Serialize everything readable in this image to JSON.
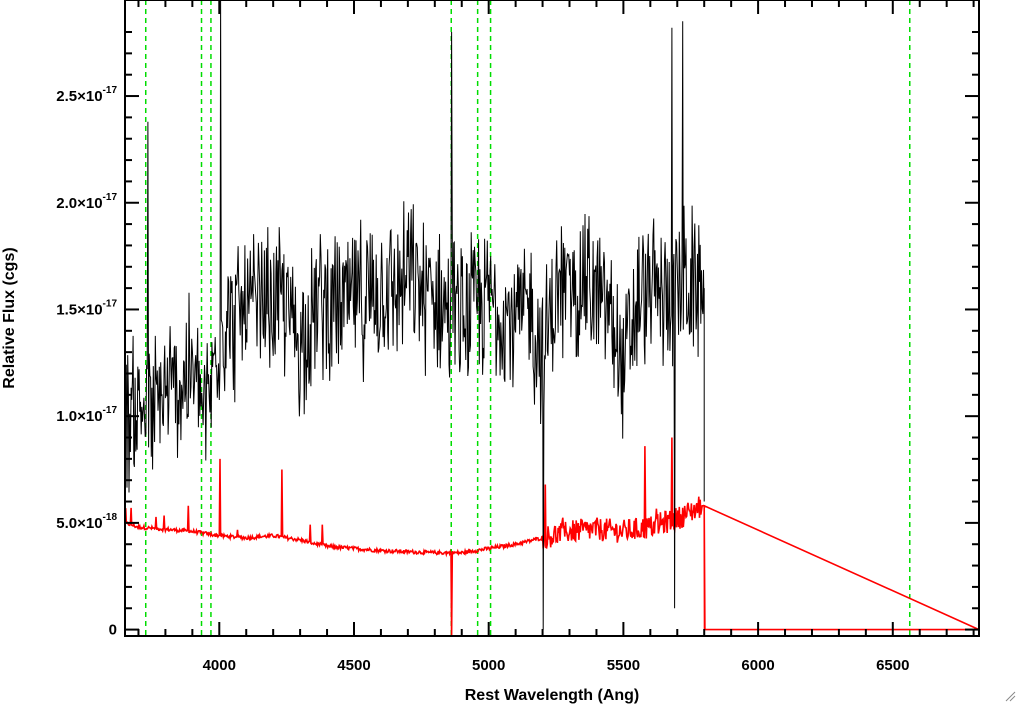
{
  "chart_data": {
    "type": "line",
    "title": "",
    "xlabel": "Rest Wavelength (Ang)",
    "ylabel": "Relative Flux (cgs)",
    "xlim": [
      3650,
      6820
    ],
    "ylim": [
      -3e-19,
      2.95e-17
    ],
    "x_ticks": [
      {
        "value": 4000,
        "label": "4000"
      },
      {
        "value": 4500,
        "label": "4500"
      },
      {
        "value": 5000,
        "label": "5000"
      },
      {
        "value": 5500,
        "label": "5500"
      },
      {
        "value": 6000,
        "label": "6000"
      },
      {
        "value": 6500,
        "label": "6500"
      }
    ],
    "y_ticks": [
      {
        "value": 0,
        "mantissa": "0",
        "exponent": ""
      },
      {
        "value": 5e-18,
        "mantissa": "5.0×10",
        "exponent": "-18"
      },
      {
        "value": 1e-17,
        "mantissa": "1.0×10",
        "exponent": "-17"
      },
      {
        "value": 1.5e-17,
        "mantissa": "1.5×10",
        "exponent": "-17"
      },
      {
        "value": 2e-17,
        "mantissa": "2.0×10",
        "exponent": "-17"
      },
      {
        "value": 2.5e-17,
        "mantissa": "2.5×10",
        "exponent": "-17"
      }
    ],
    "grid": false,
    "reference_lines": [
      3727,
      3934,
      3969,
      4861,
      4959,
      5007,
      6563
    ],
    "series": [
      {
        "color": "#000000",
        "x": [
          3650,
          3700,
          3750,
          3800,
          3850,
          3900,
          3950,
          4000,
          4050,
          4100,
          4150,
          4200,
          4250,
          4300,
          4350,
          4400,
          4450,
          4500,
          4550,
          4600,
          4650,
          4700,
          4750,
          4800,
          4850,
          4900,
          4950,
          5000,
          5050,
          5100,
          5150,
          5200,
          5250,
          5300,
          5350,
          5400,
          5450,
          5500,
          5550,
          5600,
          5650,
          5700,
          5750,
          5800
        ],
        "values": [
          1e-17,
          1.05e-17,
          1e-17,
          1.1e-17,
          1.15e-17,
          1.2e-17,
          1e-17,
          1.4e-17,
          1.45e-17,
          1.5e-17,
          1.5e-17,
          1.55e-17,
          1.5e-17,
          1.35e-17,
          1.5e-17,
          1.55e-17,
          1.5e-17,
          1.55e-17,
          1.55e-17,
          1.6e-17,
          1.6e-17,
          1.65e-17,
          1.6e-17,
          1.55e-17,
          1.5e-17,
          1.45e-17,
          1.5e-17,
          1.55e-17,
          1.5e-17,
          1.45e-17,
          1.5e-17,
          1.3e-17,
          1.55e-17,
          1.6e-17,
          1.65e-17,
          1.55e-17,
          1.5e-17,
          1.2e-17,
          1.5e-17,
          1.6e-17,
          1.55e-17,
          1.6e-17,
          1.6e-17,
          1.6e-17
        ],
        "noise_amplitude": 3e-18,
        "spikes": [
          {
            "x": 3735,
            "value": 2.38e-17
          },
          {
            "x": 4005,
            "value": 2.95e-17
          },
          {
            "x": 4862,
            "value": 2.8e-17
          },
          {
            "x": 5202,
            "value": 0.0
          },
          {
            "x": 5690,
            "value": 1e-18
          },
          {
            "x": 5720,
            "value": 2.85e-17
          },
          {
            "x": 5680,
            "value": 2.82e-17
          }
        ],
        "end_x": 5800
      },
      {
        "color": "#ff0000",
        "x": [
          3650,
          3700,
          3800,
          3900,
          4000,
          4100,
          4200,
          4300,
          4400,
          4500,
          4600,
          4700,
          4800,
          4900,
          5000,
          5100,
          5200,
          5300,
          5400,
          5500,
          5600,
          5700,
          5790,
          5800,
          5801,
          6820
        ],
        "values": [
          5e-18,
          4.8e-18,
          4.7e-18,
          4.6e-18,
          4.4e-18,
          4.3e-18,
          4.4e-18,
          4.2e-18,
          3.9e-18,
          3.8e-18,
          3.7e-18,
          3.65e-18,
          3.6e-18,
          3.6e-18,
          3.8e-18,
          4e-18,
          4.3e-18,
          4.6e-18,
          4.7e-18,
          4.6e-18,
          4.8e-18,
          5.2e-18,
          5.8e-18,
          5.8e-18,
          0,
          0
        ],
        "noise_amplitude": 1e-18,
        "spikes": [
          {
            "x": 3672,
            "value": 5.7e-18
          },
          {
            "x": 3884,
            "value": 5.8e-18
          },
          {
            "x": 4003,
            "value": 8e-18
          },
          {
            "x": 4232,
            "value": 7.5e-18
          },
          {
            "x": 4862,
            "value": -3e-19
          },
          {
            "x": 5210,
            "value": 6.8e-18
          },
          {
            "x": 5580,
            "value": 8.6e-18
          },
          {
            "x": 5680,
            "value": 9e-18
          }
        ]
      }
    ]
  }
}
